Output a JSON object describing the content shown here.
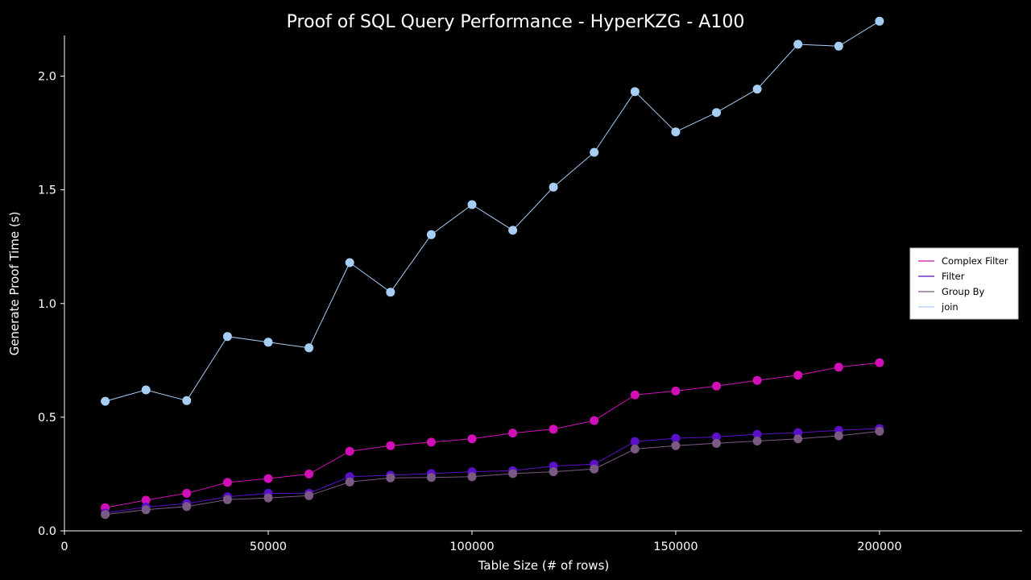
{
  "chart_data": {
    "type": "line",
    "title": "Proof of SQL Query Performance - HyperKZG - A100",
    "xlabel": "Table Size (# of rows)",
    "ylabel": "Generate Proof Time (s)",
    "xlim": [
      0,
      235000
    ],
    "ylim": [
      0,
      2.25
    ],
    "x_ticks": [
      0,
      50000,
      100000,
      150000,
      200000
    ],
    "x_tick_labels": [
      "0",
      "50000",
      "100000",
      "150000",
      "200000"
    ],
    "y_ticks": [
      0.0,
      0.5,
      1.0,
      1.5,
      2.0
    ],
    "y_tick_labels": [
      "0.0",
      "0.5",
      "1.0",
      "1.5",
      "2.0"
    ],
    "grid": false,
    "legend_position": "right",
    "x": [
      10000,
      20000,
      30000,
      40000,
      50000,
      60000,
      70000,
      80000,
      90000,
      100000,
      110000,
      120000,
      130000,
      140000,
      150000,
      160000,
      170000,
      180000,
      190000,
      200000
    ],
    "series": [
      {
        "name": "Complex Filter",
        "color": "#d10fb6",
        "values": [
          0.102,
          0.135,
          0.165,
          0.213,
          0.23,
          0.25,
          0.35,
          0.375,
          0.39,
          0.405,
          0.43,
          0.447,
          0.485,
          0.598,
          0.615,
          0.637,
          0.662,
          0.685,
          0.72,
          0.74
        ]
      },
      {
        "name": "Filter",
        "color": "#5a0fc8",
        "values": [
          0.078,
          0.105,
          0.12,
          0.15,
          0.165,
          0.165,
          0.238,
          0.245,
          0.252,
          0.26,
          0.265,
          0.285,
          0.293,
          0.393,
          0.407,
          0.413,
          0.425,
          0.432,
          0.442,
          0.45
        ]
      },
      {
        "name": "Group By",
        "color": "#7a5a82",
        "values": [
          0.072,
          0.093,
          0.107,
          0.137,
          0.145,
          0.155,
          0.215,
          0.233,
          0.235,
          0.238,
          0.252,
          0.26,
          0.272,
          0.36,
          0.375,
          0.385,
          0.395,
          0.405,
          0.418,
          0.438
        ]
      },
      {
        "name": "join",
        "color": "#a6cef5",
        "values": [
          0.57,
          0.62,
          0.573,
          0.855,
          0.83,
          0.805,
          1.18,
          1.05,
          1.303,
          1.435,
          1.322,
          1.512,
          1.665,
          1.932,
          1.755,
          1.84,
          1.943,
          2.14,
          2.132,
          2.242
        ]
      }
    ]
  }
}
